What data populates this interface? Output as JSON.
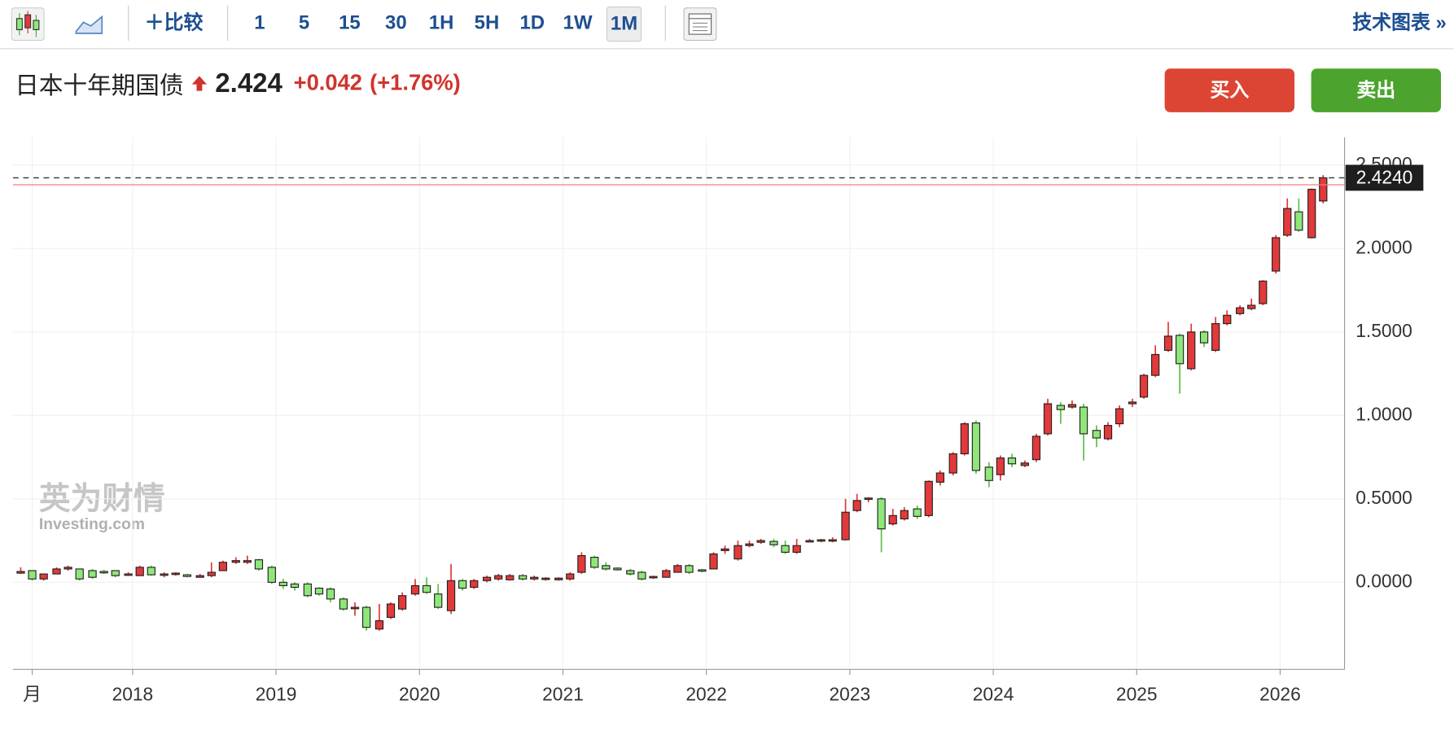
{
  "toolbar": {
    "compare": "比较",
    "intervals": [
      "1",
      "5",
      "15",
      "30",
      "1H",
      "5H",
      "1D",
      "1W",
      "1M"
    ],
    "active_interval_index": 8,
    "tech_chart": "技术图表 »"
  },
  "header": {
    "title": "日本十年期国债",
    "price": "2.424",
    "change": "+0.042",
    "change_pct": "(+1.76%)",
    "buy": "买入",
    "sell": "卖出"
  },
  "watermark": {
    "brand": "英为财情",
    "site": "Investing.com"
  },
  "chart_data": {
    "type": "candlestick",
    "x": [
      2017.22,
      2017.3,
      2017.38,
      2017.47,
      2017.55,
      2017.63,
      2017.72,
      2017.8,
      2017.88,
      2017.97,
      2018.05,
      2018.13,
      2018.22,
      2018.3,
      2018.38,
      2018.47,
      2018.55,
      2018.63,
      2018.72,
      2018.8,
      2018.88,
      2018.97,
      2019.05,
      2019.13,
      2019.22,
      2019.3,
      2019.38,
      2019.47,
      2019.55,
      2019.63,
      2019.72,
      2019.8,
      2019.88,
      2019.97,
      2020.05,
      2020.13,
      2020.22,
      2020.3,
      2020.38,
      2020.47,
      2020.55,
      2020.63,
      2020.72,
      2020.8,
      2020.88,
      2020.97,
      2021.05,
      2021.13,
      2021.22,
      2021.3,
      2021.38,
      2021.47,
      2021.55,
      2021.63,
      2021.72,
      2021.8,
      2021.88,
      2021.97,
      2022.05,
      2022.13,
      2022.22,
      2022.3,
      2022.38,
      2022.47,
      2022.55,
      2022.63,
      2022.72,
      2022.8,
      2022.88,
      2022.97,
      2023.05,
      2023.13,
      2023.22,
      2023.3,
      2023.38,
      2023.47,
      2023.55,
      2023.63,
      2023.72,
      2023.8,
      2023.88,
      2023.97,
      2024.05,
      2024.13,
      2024.22,
      2024.3,
      2024.38,
      2024.47,
      2024.55,
      2024.63,
      2024.72,
      2024.8,
      2024.88,
      2024.97,
      2025.05,
      2025.13,
      2025.22,
      2025.3,
      2025.38,
      2025.47,
      2025.55,
      2025.63,
      2025.72,
      2025.8,
      2025.88,
      2025.97,
      2026.05,
      2026.13,
      2026.22,
      2026.3
    ],
    "open": [
      0.055,
      0.07,
      0.02,
      0.05,
      0.08,
      0.08,
      0.07,
      0.065,
      0.07,
      0.05,
      0.04,
      0.09,
      0.045,
      0.05,
      0.045,
      0.03,
      0.04,
      0.07,
      0.12,
      0.12,
      0.135,
      0.09,
      0,
      -0.01,
      -0.01,
      -0.035,
      -0.04,
      -0.1,
      -0.155,
      -0.15,
      -0.28,
      -0.21,
      -0.16,
      -0.07,
      -0.02,
      -0.07,
      -0.17,
      0.01,
      -0.03,
      0.01,
      0.02,
      0.015,
      0.04,
      0.02,
      0.02,
      0.015,
      0.02,
      0.06,
      0.15,
      0.1,
      0.085,
      0.07,
      0.06,
      0.03,
      0.03,
      0.06,
      0.1,
      0.075,
      0.08,
      0.19,
      0.14,
      0.22,
      0.24,
      0.245,
      0.22,
      0.18,
      0.245,
      0.25,
      0.25,
      0.255,
      0.43,
      0.5,
      0.5,
      0.35,
      0.38,
      0.44,
      0.4,
      0.6,
      0.655,
      0.77,
      0.955,
      0.69,
      0.645,
      0.745,
      0.7,
      0.735,
      0.89,
      1.06,
      1.05,
      1.05,
      0.91,
      0.86,
      0.95,
      1.07,
      1.11,
      1.24,
      1.39,
      1.48,
      1.28,
      1.5,
      1.39,
      1.55,
      1.61,
      1.64,
      1.67,
      1.865,
      2.08,
      2.22,
      2.065,
      2.285
    ],
    "high": [
      0.09,
      0.07,
      0.05,
      0.09,
      0.1,
      0.08,
      0.08,
      0.075,
      0.07,
      0.06,
      0.1,
      0.1,
      0.06,
      0.06,
      0.05,
      0.05,
      0.12,
      0.13,
      0.15,
      0.16,
      0.14,
      0.1,
      0.02,
      0,
      0,
      -0.03,
      -0.03,
      -0.09,
      -0.12,
      -0.14,
      -0.13,
      -0.12,
      -0.06,
      0.02,
      0.03,
      -0.01,
      0.11,
      0.02,
      0.02,
      0.04,
      0.05,
      0.05,
      0.05,
      0.04,
      0.03,
      0.03,
      0.06,
      0.18,
      0.16,
      0.12,
      0.09,
      0.08,
      0.07,
      0.04,
      0.08,
      0.11,
      0.11,
      0.08,
      0.18,
      0.22,
      0.25,
      0.25,
      0.26,
      0.26,
      0.25,
      0.26,
      0.26,
      0.26,
      0.27,
      0.5,
      0.53,
      0.51,
      0.51,
      0.44,
      0.45,
      0.46,
      0.61,
      0.67,
      0.78,
      0.96,
      0.97,
      0.72,
      0.76,
      0.77,
      0.73,
      0.89,
      1.1,
      1.08,
      1.09,
      1.07,
      0.94,
      0.96,
      1.06,
      1.1,
      1.25,
      1.42,
      1.56,
      1.49,
      1.55,
      1.51,
      1.59,
      1.63,
      1.66,
      1.7,
      1.81,
      2.08,
      2.3,
      2.3,
      2.36,
      2.44
    ],
    "low": [
      0.05,
      0.01,
      0.01,
      0.05,
      0.07,
      0.01,
      0.02,
      0.05,
      0.03,
      0.04,
      0.04,
      0.04,
      0.03,
      0.04,
      0.03,
      0.03,
      0.03,
      0.07,
      0.11,
      0.11,
      0.07,
      -0.01,
      -0.04,
      -0.05,
      -0.09,
      -0.08,
      -0.12,
      -0.17,
      -0.2,
      -0.29,
      -0.29,
      -0.22,
      -0.17,
      -0.08,
      -0.07,
      -0.16,
      -0.19,
      -0.05,
      -0.04,
      0,
      0.01,
      0.01,
      0.01,
      0.01,
      0.01,
      0.01,
      0.01,
      0.05,
      0.08,
      0.07,
      0.07,
      0.04,
      0.01,
      0.02,
      0.03,
      0.06,
      0.05,
      0.06,
      0.08,
      0.17,
      0.13,
      0.21,
      0.23,
      0.21,
      0.17,
      0.17,
      0.24,
      0.24,
      0.24,
      0.25,
      0.42,
      0.48,
      0.18,
      0.34,
      0.37,
      0.38,
      0.39,
      0.58,
      0.64,
      0.76,
      0.65,
      0.57,
      0.61,
      0.69,
      0.69,
      0.72,
      0.88,
      0.95,
      1.04,
      0.73,
      0.81,
      0.85,
      0.93,
      1.05,
      1.1,
      1.23,
      1.38,
      1.13,
      1.27,
      1.41,
      1.38,
      1.54,
      1.6,
      1.63,
      1.66,
      1.85,
      2.07,
      2.1,
      2.06,
      2.27
    ],
    "close": [
      0.065,
      0.02,
      0.05,
      0.08,
      0.09,
      0.02,
      0.03,
      0.06,
      0.04,
      0.05,
      0.09,
      0.045,
      0.05,
      0.055,
      0.035,
      0.04,
      0.06,
      0.12,
      0.13,
      0.13,
      0.08,
      0,
      -0.02,
      -0.03,
      -0.08,
      -0.07,
      -0.1,
      -0.16,
      -0.15,
      -0.27,
      -0.23,
      -0.13,
      -0.08,
      -0.02,
      -0.06,
      -0.15,
      0.01,
      -0.035,
      0.01,
      0.03,
      0.04,
      0.04,
      0.02,
      0.03,
      0.025,
      0.025,
      0.05,
      0.16,
      0.09,
      0.08,
      0.075,
      0.05,
      0.02,
      0.035,
      0.07,
      0.1,
      0.06,
      0.07,
      0.17,
      0.2,
      0.22,
      0.23,
      0.25,
      0.225,
      0.18,
      0.22,
      0.25,
      0.255,
      0.255,
      0.42,
      0.49,
      0.505,
      0.32,
      0.4,
      0.43,
      0.395,
      0.605,
      0.655,
      0.77,
      0.95,
      0.67,
      0.61,
      0.745,
      0.71,
      0.715,
      0.875,
      1.07,
      1.035,
      1.065,
      0.89,
      0.865,
      0.94,
      1.04,
      1.08,
      1.24,
      1.365,
      1.475,
      1.31,
      1.5,
      1.435,
      1.55,
      1.6,
      1.645,
      1.66,
      1.805,
      2.065,
      2.24,
      2.11,
      2.355,
      2.424
    ],
    "up_color": "#e2393a",
    "down_color": "#8fe77a",
    "border_color": "#222222",
    "xlim": [
      2017.166,
      2026.449
    ],
    "xticks": [
      {
        "value": 2017.3,
        "label": "月"
      },
      2018,
      2019,
      2020,
      2021,
      2022,
      2023,
      2024,
      2025,
      2026
    ],
    "ylim": [
      -0.522,
      2.667
    ],
    "yticks": [
      {
        "value": 0,
        "label": "0.0000"
      },
      {
        "value": 0.5,
        "label": "0.5000"
      },
      {
        "value": 1,
        "label": "1.0000"
      },
      {
        "value": 1.5,
        "label": "1.5000"
      },
      {
        "value": 2,
        "label": "2.0000"
      },
      {
        "value": 2.5,
        "label": "2.5000"
      }
    ],
    "grid": true,
    "last_price": {
      "value": 2.424,
      "label": "2.4240"
    },
    "prev_close": 2.382
  }
}
